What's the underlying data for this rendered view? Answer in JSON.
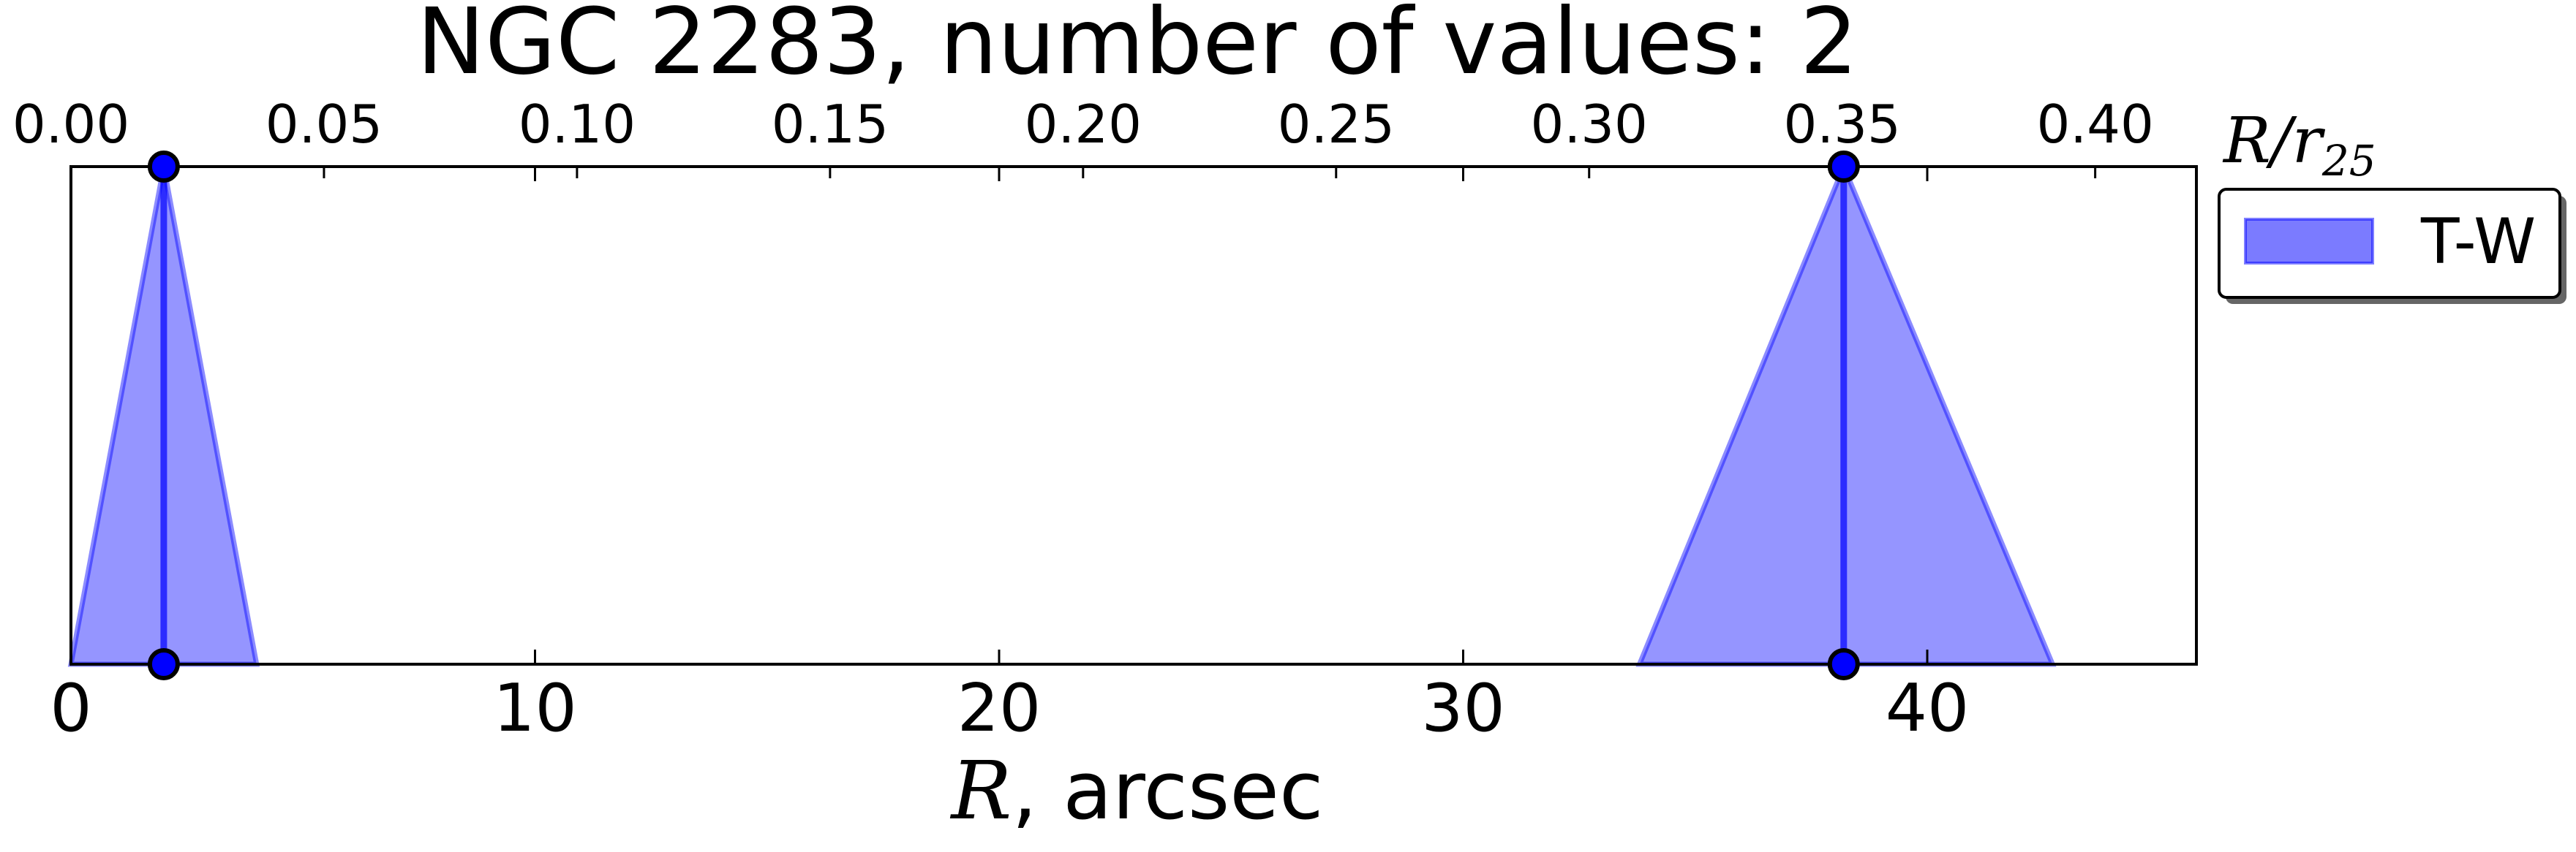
{
  "chart_data": {
    "type": "area",
    "title": "NGC 2283, number of values: 2",
    "xlabel_var": "R",
    "xlabel_rest": ", arcsec",
    "top_xlabel_var": "R/r",
    "top_xlabel_sub": "25",
    "xlim": [
      0,
      45.8
    ],
    "top_xlim": [
      0,
      0.42
    ],
    "x_ticks": [
      0,
      10,
      20,
      30,
      40
    ],
    "x_tick_labels": [
      "0",
      "10",
      "20",
      "30",
      "40"
    ],
    "top_ticks": [
      0.0,
      0.05,
      0.1,
      0.15,
      0.2,
      0.25,
      0.3,
      0.35,
      0.4
    ],
    "top_tick_labels": [
      "0.00",
      "0.05",
      "0.10",
      "0.15",
      "0.20",
      "0.25",
      "0.30",
      "0.35",
      "0.40"
    ],
    "legend_position": "outside-right-top",
    "series": [
      {
        "name": "T-W",
        "color": "#0000ff",
        "fill_color": "#7b7bff",
        "points": [
          2.0,
          38.2
        ],
        "triangles": [
          {
            "center": 2.0,
            "left": 0.0,
            "right": 4.0
          },
          {
            "center": 38.2,
            "left": 33.8,
            "right": 42.7
          }
        ]
      }
    ],
    "grid": false
  }
}
